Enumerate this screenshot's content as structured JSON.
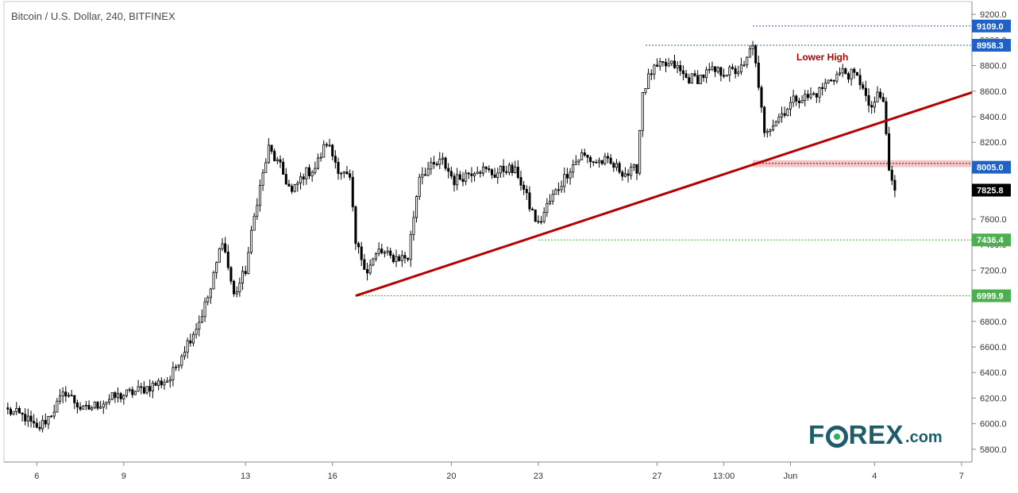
{
  "chart_data": {
    "type": "candlestick",
    "title": "Bitcoin / U.S. Dollar, 240, BITFINEX",
    "ylim": [
      5700,
      9300
    ],
    "y_ticks": [
      5800,
      6000,
      6200,
      6400,
      6600,
      6800,
      7000,
      7200,
      7400,
      7600,
      7800,
      8000,
      8200,
      8400,
      8600,
      8800,
      9000,
      9200
    ],
    "y_tick_labels": [
      "5800.0",
      "6000.0",
      "6200.0",
      "6400.0",
      "6600.0",
      "6800.0",
      "7000.0",
      "7200.0",
      "7400.0",
      "7600.0",
      "7800.0",
      "8000.0",
      "8200.0",
      "8400.0",
      "8600.0",
      "8800.0",
      "9000.0",
      "9200.0"
    ],
    "x_tick_labels": [
      "6",
      "9",
      "13",
      "16",
      "20",
      "23",
      "27",
      "13:00",
      "Jun",
      "4",
      "7"
    ],
    "x_tick_bars": [
      10,
      40,
      82,
      112,
      153,
      183,
      224,
      247,
      270,
      299,
      329
    ],
    "bar_count": 332,
    "anchors": [
      [
        0,
        6100
      ],
      [
        6,
        6050
      ],
      [
        10,
        5950
      ],
      [
        14,
        6050
      ],
      [
        20,
        6250
      ],
      [
        26,
        6100
      ],
      [
        36,
        6200
      ],
      [
        44,
        6250
      ],
      [
        50,
        6300
      ],
      [
        56,
        6350
      ],
      [
        60,
        6550
      ],
      [
        66,
        6800
      ],
      [
        70,
        7050
      ],
      [
        74,
        7450
      ],
      [
        78,
        7000
      ],
      [
        82,
        7200
      ],
      [
        86,
        7750
      ],
      [
        90,
        8150
      ],
      [
        94,
        8000
      ],
      [
        98,
        7800
      ],
      [
        102,
        7950
      ],
      [
        106,
        8000
      ],
      [
        110,
        8200
      ],
      [
        114,
        8000
      ],
      [
        118,
        7900
      ],
      [
        120,
        7400
      ],
      [
        124,
        7200
      ],
      [
        128,
        7350
      ],
      [
        132,
        7300
      ],
      [
        138,
        7300
      ],
      [
        142,
        7950
      ],
      [
        146,
        8000
      ],
      [
        150,
        8050
      ],
      [
        154,
        7900
      ],
      [
        158,
        7950
      ],
      [
        162,
        8000
      ],
      [
        168,
        7950
      ],
      [
        172,
        8000
      ],
      [
        176,
        7950
      ],
      [
        180,
        7700
      ],
      [
        183,
        7550
      ],
      [
        186,
        7700
      ],
      [
        190,
        7850
      ],
      [
        194,
        8000
      ],
      [
        198,
        8100
      ],
      [
        202,
        8050
      ],
      [
        206,
        8050
      ],
      [
        210,
        8000
      ],
      [
        214,
        7950
      ],
      [
        217,
        8000
      ],
      [
        219,
        8600
      ],
      [
        222,
        8750
      ],
      [
        226,
        8800
      ],
      [
        230,
        8800
      ],
      [
        234,
        8700
      ],
      [
        238,
        8700
      ],
      [
        242,
        8750
      ],
      [
        246,
        8750
      ],
      [
        250,
        8750
      ],
      [
        254,
        8780
      ],
      [
        257,
        8980
      ],
      [
        259,
        8600
      ],
      [
        261,
        8300
      ],
      [
        264,
        8350
      ],
      [
        268,
        8450
      ],
      [
        272,
        8550
      ],
      [
        276,
        8550
      ],
      [
        280,
        8600
      ],
      [
        284,
        8700
      ],
      [
        288,
        8750
      ],
      [
        292,
        8720
      ],
      [
        295,
        8650
      ],
      [
        297,
        8450
      ],
      [
        300,
        8550
      ],
      [
        302,
        8520
      ],
      [
        304,
        7980
      ],
      [
        306,
        7825
      ]
    ],
    "amplitude": 45,
    "annotations": [
      "Lower High"
    ],
    "trendline": {
      "from": {
        "bar": 120,
        "price": 6999.9
      },
      "to": {
        "bar": 332,
        "price": 8590
      },
      "color": "#b20000"
    },
    "price_labels": [
      {
        "value": 9109.0,
        "text": "9109.0",
        "color": "#1e62c6",
        "line": "blue",
        "from_bar": 257
      },
      {
        "value": 8958.3,
        "text": "8958.3",
        "color": "#1e62c6",
        "line": "blue",
        "from_bar": 220
      },
      {
        "value": 8005.0,
        "text": "8005.0",
        "color": "#1e62c6",
        "line": "none",
        "from_bar": 257
      },
      {
        "value": 7825.8,
        "text": "7825.8",
        "color": "#000000",
        "line": "none",
        "from_bar": 306
      },
      {
        "value": 7436.4,
        "text": "7436.4",
        "color": "#4caf50",
        "line": "green",
        "from_bar": 183
      },
      {
        "value": 6999.9,
        "text": "6999.9",
        "color": "#4caf50",
        "line": "green",
        "from_bar": 120
      }
    ],
    "zone": {
      "from_bar": 257,
      "to_bar": 332,
      "y_high": 8060,
      "y_low": 8005,
      "color": "#f6c6c6"
    },
    "grid": false
  }
}
